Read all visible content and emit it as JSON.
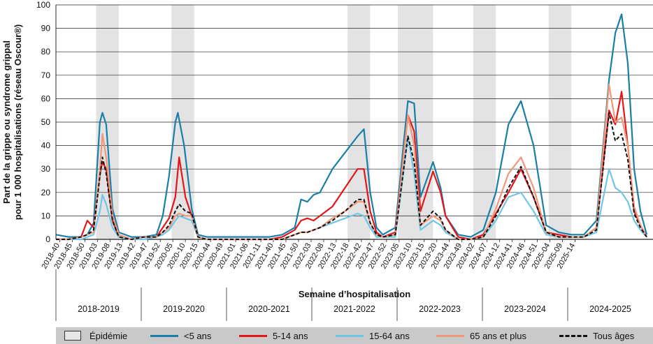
{
  "chart_data": {
    "type": "line",
    "ylabel_line1": "Part de la grippe ou syndrome grippal",
    "ylabel_line2": "pour 1 000 hospitalisations (réseau Oscour®)",
    "xlabel": "Semaine d’hospitalisation",
    "ylim": [
      0,
      100
    ],
    "yticks": [
      0,
      10,
      20,
      30,
      40,
      50,
      60,
      70,
      80,
      90,
      100
    ],
    "x_tick_labels": [
      "2018-40",
      "2018-45",
      "2018-50",
      "2019-03",
      "2019-08",
      "2019-13",
      "2019-42",
      "2019-47",
      "2019-52",
      "2020-05",
      "2020-10",
      "2020-15",
      "2020-44",
      "2020-49",
      "2021-01",
      "2021-06",
      "2021-11",
      "2021-40",
      "2021-45",
      "2021-50",
      "2022-03",
      "2022-08",
      "2022-13",
      "2022-18",
      "2022-42",
      "2022-47",
      "2022-52",
      "2023-05",
      "2023-10",
      "2023-15",
      "2023-20",
      "2023-44",
      "2023-49",
      "2024-02",
      "2024-07",
      "2024-12",
      "2024-41",
      "2024-46",
      "2024-51",
      "2025-04",
      "2025-09",
      "2025-14"
    ],
    "seasons": [
      "2018-2019",
      "2019-2020",
      "2020-2021",
      "2021-2022",
      "2022-2023",
      "2023-2024",
      "2024-2025"
    ],
    "epidemic_periods": [
      [
        3.2,
        5.0
      ],
      [
        9.2,
        11.0
      ],
      [
        23.2,
        25.0
      ],
      [
        27.2,
        30.0
      ],
      [
        33.2,
        35.0
      ],
      [
        39.2,
        41.0
      ]
    ],
    "series": [
      {
        "name": "<5 ans",
        "color": "#1a7fa8",
        "points": [
          [
            0,
            2
          ],
          [
            1,
            1
          ],
          [
            2,
            1
          ],
          [
            2.5,
            2
          ],
          [
            3,
            7
          ],
          [
            3.5,
            50
          ],
          [
            3.7,
            54
          ],
          [
            4.0,
            49
          ],
          [
            4.5,
            13
          ],
          [
            5,
            3
          ],
          [
            6,
            1
          ],
          [
            7,
            1
          ],
          [
            8,
            2
          ],
          [
            8.5,
            10
          ],
          [
            9,
            27
          ],
          [
            9.5,
            50
          ],
          [
            9.7,
            54
          ],
          [
            10.2,
            40
          ],
          [
            10.8,
            13
          ],
          [
            11.3,
            2
          ],
          [
            12,
            1
          ],
          [
            14,
            1
          ],
          [
            16,
            1
          ],
          [
            17,
            1
          ],
          [
            18,
            2
          ],
          [
            19,
            5
          ],
          [
            19.5,
            17
          ],
          [
            20,
            16
          ],
          [
            20.5,
            19
          ],
          [
            21,
            20
          ],
          [
            22,
            30
          ],
          [
            23,
            37
          ],
          [
            24,
            44
          ],
          [
            24.5,
            47
          ],
          [
            25,
            20
          ],
          [
            25.5,
            5
          ],
          [
            26,
            2
          ],
          [
            27,
            5
          ],
          [
            28,
            59
          ],
          [
            28.5,
            58
          ],
          [
            29,
            18
          ],
          [
            30,
            33
          ],
          [
            30.6,
            22
          ],
          [
            31,
            10
          ],
          [
            32,
            2
          ],
          [
            33,
            1
          ],
          [
            34,
            4
          ],
          [
            35,
            20
          ],
          [
            36,
            49
          ],
          [
            37,
            59
          ],
          [
            38,
            40
          ],
          [
            39,
            6
          ],
          [
            40,
            3
          ],
          [
            41,
            2
          ],
          [
            42,
            2
          ],
          [
            43,
            8
          ],
          [
            44,
            68
          ],
          [
            44.5,
            88
          ],
          [
            45,
            96
          ],
          [
            45.5,
            75
          ],
          [
            46,
            30
          ],
          [
            46.5,
            12
          ],
          [
            47,
            2
          ]
        ]
      },
      {
        "name": "5-14 ans",
        "color": "#e2161b",
        "points": [
          [
            0,
            0
          ],
          [
            1,
            0
          ],
          [
            2,
            1
          ],
          [
            2.5,
            8
          ],
          [
            3,
            5
          ],
          [
            3.5,
            28
          ],
          [
            3.7,
            33
          ],
          [
            4.0,
            30
          ],
          [
            4.5,
            8
          ],
          [
            5,
            1
          ],
          [
            6,
            0
          ],
          [
            7,
            1
          ],
          [
            8,
            1
          ],
          [
            8.5,
            5
          ],
          [
            9,
            9
          ],
          [
            9.5,
            18
          ],
          [
            9.8,
            35
          ],
          [
            10.3,
            18
          ],
          [
            10.8,
            10
          ],
          [
            11.3,
            1
          ],
          [
            12,
            0
          ],
          [
            14,
            0
          ],
          [
            16,
            0
          ],
          [
            17,
            0
          ],
          [
            18,
            1
          ],
          [
            19,
            4
          ],
          [
            19.5,
            8
          ],
          [
            20,
            9
          ],
          [
            20.5,
            8
          ],
          [
            21,
            10
          ],
          [
            22,
            14
          ],
          [
            23,
            22
          ],
          [
            24,
            30
          ],
          [
            24.5,
            30
          ],
          [
            25,
            12
          ],
          [
            25.5,
            3
          ],
          [
            26,
            1
          ],
          [
            27,
            3
          ],
          [
            28,
            53
          ],
          [
            28.5,
            46
          ],
          [
            29,
            12
          ],
          [
            30,
            29
          ],
          [
            30.6,
            20
          ],
          [
            31,
            10
          ],
          [
            32,
            1
          ],
          [
            33,
            0
          ],
          [
            34,
            2
          ],
          [
            35,
            11
          ],
          [
            36,
            20
          ],
          [
            37,
            30
          ],
          [
            38,
            18
          ],
          [
            39,
            3
          ],
          [
            40,
            2
          ],
          [
            41,
            1
          ],
          [
            42,
            1
          ],
          [
            43,
            5
          ],
          [
            44,
            55
          ],
          [
            44.5,
            49
          ],
          [
            45,
            63
          ],
          [
            45.5,
            40
          ],
          [
            46,
            12
          ],
          [
            46.5,
            6
          ],
          [
            47,
            1
          ]
        ]
      },
      {
        "name": "15-64 ans",
        "color": "#6fc6e6",
        "points": [
          [
            0,
            0
          ],
          [
            1,
            0
          ],
          [
            2,
            0
          ],
          [
            2.5,
            1
          ],
          [
            3,
            2
          ],
          [
            3.5,
            12
          ],
          [
            3.7,
            19
          ],
          [
            4.0,
            15
          ],
          [
            4.5,
            5
          ],
          [
            5,
            1
          ],
          [
            6,
            0
          ],
          [
            7,
            0
          ],
          [
            8,
            1
          ],
          [
            8.5,
            2
          ],
          [
            9,
            4
          ],
          [
            9.5,
            8
          ],
          [
            9.8,
            10
          ],
          [
            10.3,
            9
          ],
          [
            10.8,
            8
          ],
          [
            11.3,
            1
          ],
          [
            12,
            0
          ],
          [
            14,
            0
          ],
          [
            16,
            0
          ],
          [
            17,
            0
          ],
          [
            18,
            0
          ],
          [
            19,
            2
          ],
          [
            19.5,
            3
          ],
          [
            20,
            3
          ],
          [
            20.5,
            4
          ],
          [
            21,
            5
          ],
          [
            22,
            7
          ],
          [
            23,
            9
          ],
          [
            24,
            11
          ],
          [
            24.5,
            10
          ],
          [
            25,
            5
          ],
          [
            25.5,
            1
          ],
          [
            26,
            1
          ],
          [
            27,
            1
          ],
          [
            28,
            44
          ],
          [
            28.5,
            28
          ],
          [
            29,
            4
          ],
          [
            30,
            8
          ],
          [
            30.6,
            6
          ],
          [
            31,
            3
          ],
          [
            32,
            0
          ],
          [
            33,
            0
          ],
          [
            34,
            1
          ],
          [
            35,
            8
          ],
          [
            36,
            18
          ],
          [
            37,
            20
          ],
          [
            38,
            12
          ],
          [
            39,
            2
          ],
          [
            40,
            1
          ],
          [
            41,
            1
          ],
          [
            42,
            1
          ],
          [
            43,
            3
          ],
          [
            44,
            30
          ],
          [
            44.5,
            22
          ],
          [
            45,
            20
          ],
          [
            45.5,
            16
          ],
          [
            46,
            8
          ],
          [
            46.5,
            4
          ],
          [
            47,
            1
          ]
        ]
      },
      {
        "name": "65 ans et plus",
        "color": "#f1987a",
        "points": [
          [
            0,
            0
          ],
          [
            1,
            0
          ],
          [
            2,
            1
          ],
          [
            2.5,
            2
          ],
          [
            3,
            3
          ],
          [
            3.5,
            30
          ],
          [
            3.7,
            45
          ],
          [
            4.0,
            35
          ],
          [
            4.5,
            10
          ],
          [
            5,
            2
          ],
          [
            6,
            0
          ],
          [
            7,
            1
          ],
          [
            8,
            1
          ],
          [
            8.5,
            3
          ],
          [
            9,
            5
          ],
          [
            9.5,
            10
          ],
          [
            9.8,
            11
          ],
          [
            10.3,
            10
          ],
          [
            10.8,
            10
          ],
          [
            11.3,
            1
          ],
          [
            12,
            0
          ],
          [
            14,
            0
          ],
          [
            16,
            0
          ],
          [
            17,
            0
          ],
          [
            18,
            0
          ],
          [
            19,
            2
          ],
          [
            19.5,
            3
          ],
          [
            20,
            3
          ],
          [
            20.5,
            4
          ],
          [
            21,
            5
          ],
          [
            22,
            9
          ],
          [
            23,
            12
          ],
          [
            24,
            16
          ],
          [
            24.5,
            16
          ],
          [
            25,
            7
          ],
          [
            25.5,
            2
          ],
          [
            26,
            1
          ],
          [
            27,
            2
          ],
          [
            28,
            53
          ],
          [
            28.5,
            40
          ],
          [
            29,
            6
          ],
          [
            30,
            10
          ],
          [
            30.6,
            8
          ],
          [
            31,
            4
          ],
          [
            32,
            0
          ],
          [
            33,
            0
          ],
          [
            34,
            1
          ],
          [
            35,
            13
          ],
          [
            36,
            28
          ],
          [
            37,
            35
          ],
          [
            38,
            22
          ],
          [
            39,
            3
          ],
          [
            40,
            1
          ],
          [
            41,
            1
          ],
          [
            42,
            1
          ],
          [
            43,
            5
          ],
          [
            44,
            66
          ],
          [
            44.5,
            50
          ],
          [
            45,
            52
          ],
          [
            45.5,
            40
          ],
          [
            46,
            14
          ],
          [
            46.5,
            6
          ],
          [
            47,
            1
          ]
        ]
      },
      {
        "name": "Tous âges",
        "color": "#111111",
        "dashed": true,
        "points": [
          [
            0,
            0
          ],
          [
            1,
            0
          ],
          [
            2,
            1
          ],
          [
            2.5,
            2
          ],
          [
            3,
            4
          ],
          [
            3.5,
            27
          ],
          [
            3.7,
            35
          ],
          [
            4.0,
            28
          ],
          [
            4.5,
            8
          ],
          [
            5,
            1
          ],
          [
            6,
            0
          ],
          [
            7,
            1
          ],
          [
            8,
            1
          ],
          [
            8.5,
            3
          ],
          [
            9,
            6
          ],
          [
            9.5,
            12
          ],
          [
            9.8,
            15
          ],
          [
            10.3,
            12
          ],
          [
            10.8,
            11
          ],
          [
            11.3,
            1
          ],
          [
            12,
            0
          ],
          [
            14,
            0
          ],
          [
            16,
            0
          ],
          [
            17,
            0
          ],
          [
            18,
            0
          ],
          [
            19,
            2
          ],
          [
            19.5,
            3
          ],
          [
            20,
            3
          ],
          [
            20.5,
            4
          ],
          [
            21,
            5
          ],
          [
            22,
            8
          ],
          [
            23,
            12
          ],
          [
            24,
            17
          ],
          [
            24.5,
            17
          ],
          [
            25,
            7
          ],
          [
            25.5,
            2
          ],
          [
            26,
            1
          ],
          [
            27,
            2
          ],
          [
            28,
            44
          ],
          [
            28.5,
            33
          ],
          [
            29,
            6
          ],
          [
            30,
            12
          ],
          [
            30.6,
            9
          ],
          [
            31,
            4
          ],
          [
            32,
            0
          ],
          [
            33,
            0
          ],
          [
            34,
            1
          ],
          [
            35,
            10
          ],
          [
            36,
            22
          ],
          [
            37,
            31
          ],
          [
            38,
            18
          ],
          [
            39,
            3
          ],
          [
            40,
            1
          ],
          [
            41,
            1
          ],
          [
            42,
            1
          ],
          [
            43,
            4
          ],
          [
            44,
            54
          ],
          [
            44.5,
            42
          ],
          [
            45,
            45
          ],
          [
            45.5,
            34
          ],
          [
            46,
            11
          ],
          [
            46.5,
            5
          ],
          [
            47,
            1
          ]
        ]
      }
    ]
  },
  "legend": {
    "epidemic_label": "Épidémie",
    "items": [
      "<5 ans",
      "5-14 ans",
      "15-64 ans",
      "65 ans et plus",
      "Tous âges"
    ]
  }
}
